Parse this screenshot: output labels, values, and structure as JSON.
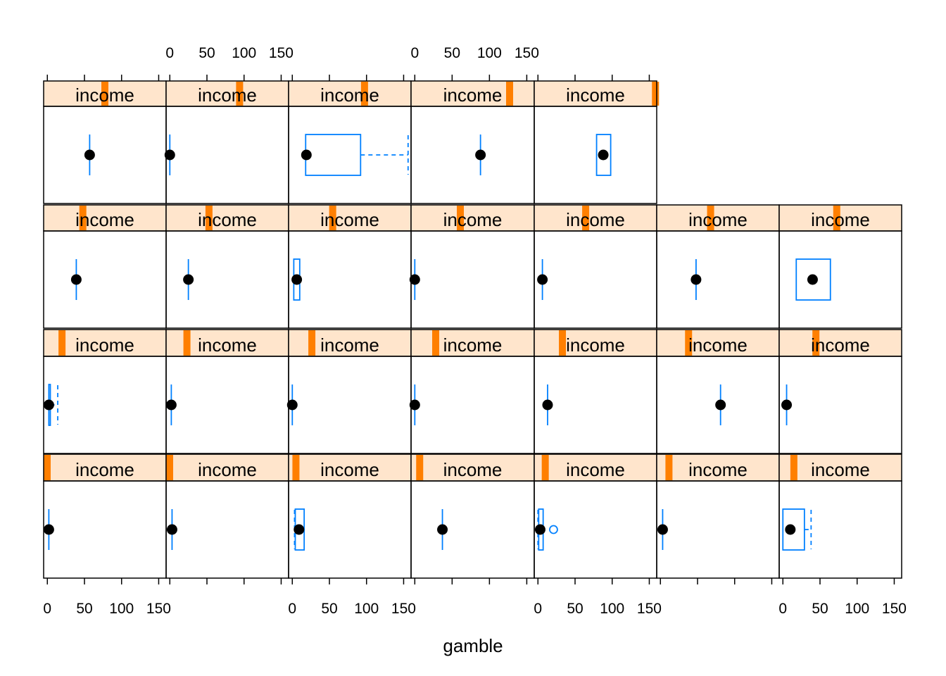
{
  "chart_data": {
    "type": "bwplot",
    "xlabel": "gamble",
    "strip_label": "income",
    "xlim": [
      -5,
      160
    ],
    "x_ticks": [
      0,
      50,
      100,
      150
    ],
    "tick_labels": [
      "0",
      "50",
      "100",
      "150"
    ],
    "layout": {
      "columns": 7,
      "rows": 4
    },
    "colors": {
      "strip_bg": "#ffe5cc",
      "strip_marker": "#ff7f00",
      "box": "#0080ff",
      "dot": "#000000"
    },
    "panels": [
      {
        "row": 1,
        "col": 1,
        "income_level": 0.0,
        "min": 2,
        "q1": 2,
        "median": 2,
        "q3": 2,
        "max": 2,
        "outliers": []
      },
      {
        "row": 1,
        "col": 2,
        "income_level": 0.02,
        "min": 3,
        "q1": 3,
        "median": 3,
        "q3": 3,
        "max": 3,
        "outliers": []
      },
      {
        "row": 1,
        "col": 3,
        "income_level": 0.06,
        "min": 3,
        "q1": 4,
        "median": 9,
        "q3": 16,
        "max": 16,
        "outliers": []
      },
      {
        "row": 1,
        "col": 4,
        "income_level": 0.07,
        "min": 37,
        "q1": 37,
        "median": 37,
        "q3": 37,
        "max": 37,
        "outliers": []
      },
      {
        "row": 1,
        "col": 5,
        "income_level": 0.09,
        "min": 0,
        "q1": 1,
        "median": 3,
        "q3": 7,
        "max": 7,
        "outliers": [
          21
        ]
      },
      {
        "row": 1,
        "col": 6,
        "income_level": 0.1,
        "min": 3,
        "q1": 3,
        "median": 3,
        "q3": 3,
        "max": 3,
        "outliers": []
      },
      {
        "row": 1,
        "col": 7,
        "income_level": 0.12,
        "min": 0,
        "q1": 0,
        "median": 10,
        "q3": 29,
        "max": 38,
        "outliers": []
      },
      {
        "row": 2,
        "col": 1,
        "income_level": 0.15,
        "min": 2,
        "q1": 2,
        "median": 2,
        "q3": 4,
        "max": 14,
        "outliers": []
      },
      {
        "row": 2,
        "col": 2,
        "income_level": 0.17,
        "min": 2,
        "q1": 2,
        "median": 2,
        "q3": 2,
        "max": 2,
        "outliers": []
      },
      {
        "row": 2,
        "col": 3,
        "income_level": 0.19,
        "min": 0,
        "q1": 0,
        "median": 0,
        "q3": 0,
        "max": 0,
        "outliers": []
      },
      {
        "row": 2,
        "col": 4,
        "income_level": 0.2,
        "min": 0,
        "q1": 0,
        "median": 0,
        "q3": 0,
        "max": 0,
        "outliers": []
      },
      {
        "row": 2,
        "col": 5,
        "income_level": 0.23,
        "min": 13,
        "q1": 13,
        "median": 13,
        "q3": 13,
        "max": 13,
        "outliers": []
      },
      {
        "row": 2,
        "col": 6,
        "income_level": 0.26,
        "min": 81,
        "q1": 81,
        "median": 81,
        "q3": 81,
        "max": 81,
        "outliers": []
      },
      {
        "row": 2,
        "col": 7,
        "income_level": 0.3,
        "min": 5,
        "q1": 5,
        "median": 5,
        "q3": 5,
        "max": 5,
        "outliers": []
      },
      {
        "row": 3,
        "col": 1,
        "income_level": 0.32,
        "min": 39,
        "q1": 39,
        "median": 39,
        "q3": 39,
        "max": 39,
        "outliers": []
      },
      {
        "row": 3,
        "col": 2,
        "income_level": 0.35,
        "min": 25,
        "q1": 25,
        "median": 25,
        "q3": 25,
        "max": 25,
        "outliers": []
      },
      {
        "row": 3,
        "col": 3,
        "income_level": 0.36,
        "min": 2,
        "q1": 2,
        "median": 6,
        "q3": 10,
        "max": 10,
        "outliers": []
      },
      {
        "row": 3,
        "col": 4,
        "income_level": 0.4,
        "min": 0,
        "q1": 0,
        "median": 0,
        "q3": 0,
        "max": 0,
        "outliers": []
      },
      {
        "row": 3,
        "col": 5,
        "income_level": 0.42,
        "min": 6,
        "q1": 6,
        "median": 6,
        "q3": 6,
        "max": 6,
        "outliers": []
      },
      {
        "row": 3,
        "col": 6,
        "income_level": 0.44,
        "min": 48,
        "q1": 48,
        "median": 48,
        "q3": 48,
        "max": 48,
        "outliers": []
      },
      {
        "row": 3,
        "col": 7,
        "income_level": 0.47,
        "min": 18,
        "q1": 18,
        "median": 40,
        "q3": 64,
        "max": 64,
        "outliers": []
      },
      {
        "row": 4,
        "col": 1,
        "income_level": 0.5,
        "min": 57,
        "q1": 57,
        "median": 57,
        "q3": 57,
        "max": 57,
        "outliers": []
      },
      {
        "row": 4,
        "col": 2,
        "income_level": 0.6,
        "min": 0,
        "q1": 0,
        "median": 0,
        "q3": 0,
        "max": 0,
        "outliers": []
      },
      {
        "row": 4,
        "col": 3,
        "income_level": 0.62,
        "min": 18,
        "q1": 18,
        "median": 19,
        "q3": 92,
        "max": 156,
        "outliers": []
      },
      {
        "row": 4,
        "col": 4,
        "income_level": 0.8,
        "min": 88,
        "q1": 88,
        "median": 88,
        "q3": 88,
        "max": 88,
        "outliers": []
      },
      {
        "row": 4,
        "col": 5,
        "income_level": 0.99,
        "min": 79,
        "q1": 79,
        "median": 88,
        "q3": 98,
        "max": 98,
        "outliers": []
      }
    ]
  }
}
